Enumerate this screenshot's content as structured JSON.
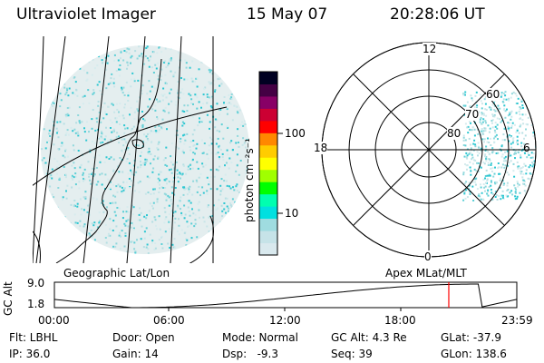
{
  "header": {
    "instrument": "Ultraviolet Imager",
    "date": "15 May 07",
    "time": "20:28:06 UT"
  },
  "colorbar": {
    "unit": "photon cm⁻²s⁻¹",
    "ticks": [
      "100",
      "10"
    ],
    "colors": [
      "#d9e9ee",
      "#c6e3e8",
      "#9fdce0",
      "#00e0e0",
      "#00ffb0",
      "#00ff00",
      "#a0ff00",
      "#ffff00",
      "#ffcc00",
      "#ff8800",
      "#ff0000",
      "#cc0033",
      "#880066",
      "#440044",
      "#000022"
    ]
  },
  "geo_panel": {
    "label": "Geographic Lat/Lon"
  },
  "polar_panel": {
    "label": "Apex MLat/MLT",
    "mlt_labels": [
      "12",
      "18",
      "6",
      "0"
    ],
    "lat_labels": [
      "60",
      "70",
      "80"
    ]
  },
  "altitude_plot": {
    "ylabel": "GC Alt",
    "yticks": [
      "9.0",
      "1.8"
    ],
    "xticks": [
      "00:00",
      "06:00",
      "12:00",
      "18:00",
      "23:59"
    ],
    "marker_color": "#ff0000",
    "marker_time_hours": 20.47
  },
  "status": {
    "flt": "Flt: LBHL",
    "ip": "IP: 36.0",
    "door": "Door: Open",
    "gain": "Gain: 14",
    "mode": "Mode: Normal",
    "dsp": "Dsp:   -9.3",
    "gc_alt": "GC Alt: 4.3 Re",
    "seq": "Seq: 39",
    "glat": "GLat: -37.9",
    "glon": "GLon: 138.6"
  }
}
